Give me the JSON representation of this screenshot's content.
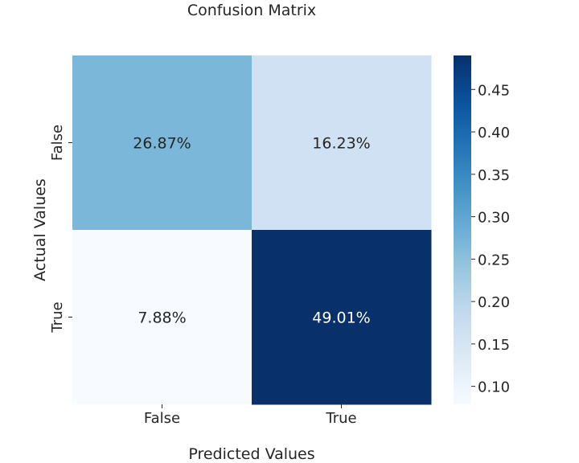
{
  "chart_data": {
    "type": "heatmap",
    "title": "Confusion Matrix",
    "xlabel": "Predicted Values",
    "ylabel": "Actual Values",
    "x_categories": [
      "False",
      "True"
    ],
    "y_categories": [
      "False",
      "True"
    ],
    "values": [
      [
        0.2687,
        0.1623
      ],
      [
        0.0788,
        0.4901
      ]
    ],
    "annotations": [
      [
        "26.87%",
        "16.23%"
      ],
      [
        "7.88%",
        "49.01%"
      ]
    ],
    "colormap": "Blues",
    "colorbar": {
      "range": [
        0.0788,
        0.4901
      ],
      "ticks": [
        0.1,
        0.15,
        0.2,
        0.25,
        0.3,
        0.35,
        0.4,
        0.45
      ],
      "tick_labels": [
        "0.10",
        "0.15",
        "0.20",
        "0.25",
        "0.30",
        "0.35",
        "0.40",
        "0.45"
      ]
    },
    "grid": false
  }
}
